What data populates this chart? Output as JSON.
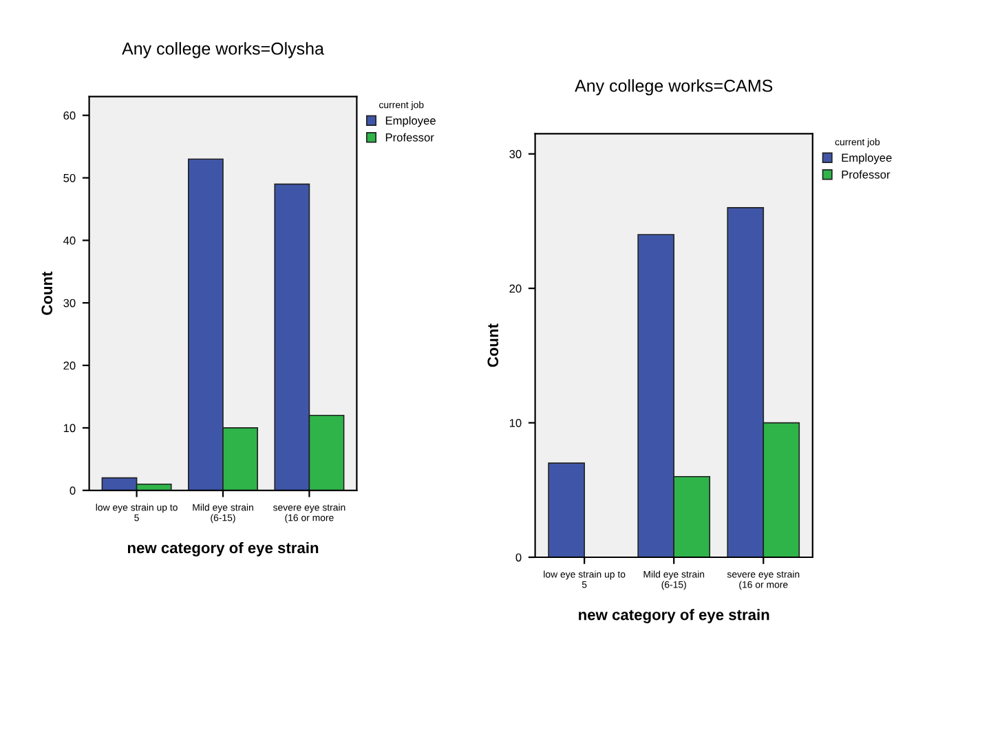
{
  "chart_data": [
    {
      "type": "bar",
      "title": "Any college works=Olysha",
      "xlabel": "new category of eye strain",
      "ylabel": "Count",
      "legend_title": "current job",
      "categories": [
        "low eye strain up to 5",
        "Mild eye strain (6-15)",
        "severe eye strain (16 or more"
      ],
      "series": [
        {
          "name": "Employee",
          "color": "#3f56a8",
          "values": [
            2,
            53,
            49
          ]
        },
        {
          "name": "Professor",
          "color": "#2fb44a",
          "values": [
            1,
            10,
            12
          ]
        }
      ],
      "ylim": [
        0,
        63
      ],
      "yticks": [
        0,
        10,
        20,
        30,
        40,
        50,
        60
      ],
      "legend": "top right",
      "grid": false
    },
    {
      "type": "bar",
      "title": "Any college works=CAMS",
      "xlabel": "new category of eye strain",
      "ylabel": "Count",
      "legend_title": "current job",
      "categories": [
        "low eye strain up to 5",
        "Mild eye strain (6-15)",
        "severe eye strain (16 or more"
      ],
      "series": [
        {
          "name": "Employee",
          "color": "#3f56a8",
          "values": [
            7,
            24,
            26
          ]
        },
        {
          "name": "Professor",
          "color": "#2fb44a",
          "values": [
            null,
            6,
            10
          ]
        }
      ],
      "ylim": [
        0,
        31.5
      ],
      "yticks": [
        0,
        10,
        20,
        30
      ],
      "legend": "top right",
      "grid": false
    }
  ]
}
